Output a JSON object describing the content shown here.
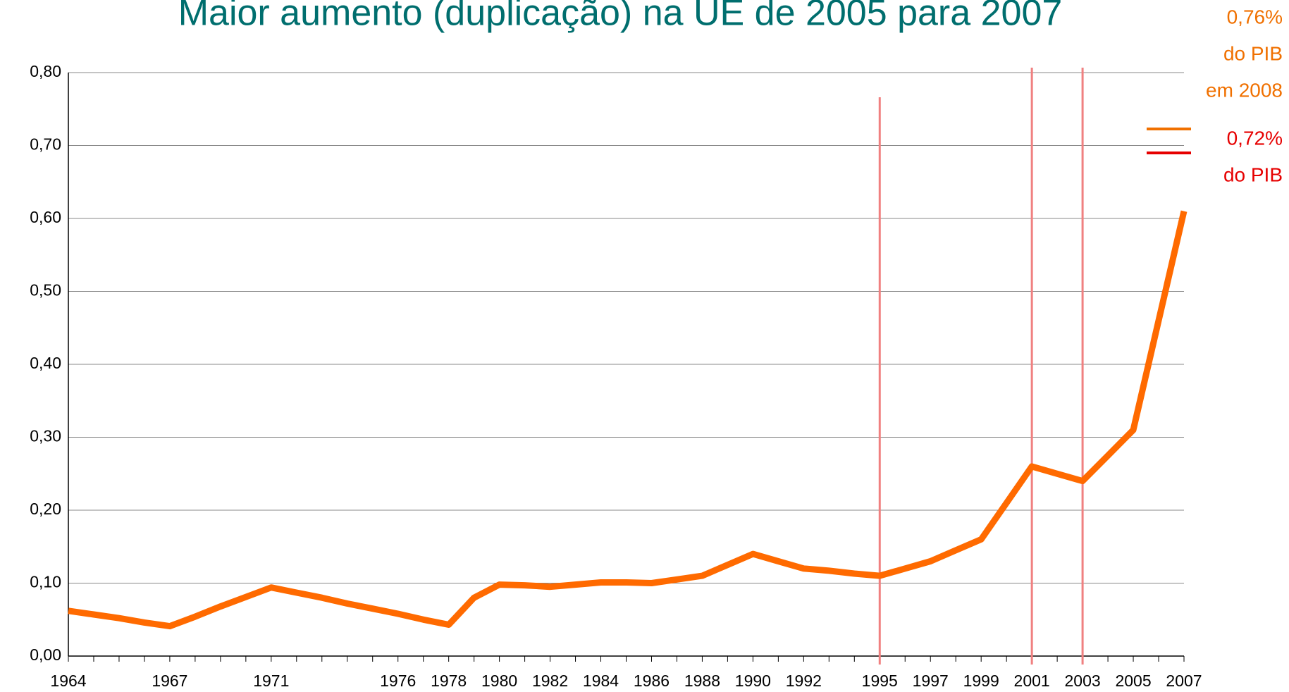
{
  "chart_data": {
    "type": "line",
    "title": "Maior aumento (duplicação) na UE de 2005 para 2007",
    "categories": [
      "1964",
      null,
      null,
      null,
      "1967",
      null,
      null,
      null,
      "1971",
      null,
      null,
      null,
      null,
      "1976",
      null,
      "1978",
      null,
      "1980",
      null,
      "1982",
      null,
      "1984",
      null,
      "1986",
      null,
      "1988",
      null,
      "1990",
      null,
      "1992",
      null,
      null,
      "1995",
      null,
      "1997",
      null,
      "1999",
      null,
      "2001",
      null,
      "2003",
      null,
      "2005",
      null,
      "2007"
    ],
    "series": [
      {
        "name": null,
        "color": "#ff6a00",
        "values": [
          0.062,
          0.057,
          0.052,
          0.046,
          0.041,
          0.054,
          0.068,
          0.081,
          0.094,
          0.087,
          0.08,
          0.072,
          0.065,
          0.058,
          0.05,
          0.043,
          0.08,
          0.098,
          0.097,
          0.095,
          0.098,
          0.101,
          0.101,
          0.1,
          0.105,
          0.11,
          0.125,
          0.14,
          0.13,
          0.12,
          0.117,
          0.113,
          0.11,
          0.12,
          0.13,
          0.145,
          0.16,
          0.21,
          0.26,
          0.25,
          0.24,
          0.275,
          0.31,
          0.46,
          0.61
        ]
      }
    ],
    "ylim": [
      0,
      0.8
    ],
    "yticks": [
      {
        "value": 0,
        "label": "0,00"
      },
      {
        "value": 0.1,
        "label": "0,10"
      },
      {
        "value": 0.2,
        "label": "0,20"
      },
      {
        "value": 0.3,
        "label": "0,30"
      },
      {
        "value": 0.4,
        "label": "0,40"
      },
      {
        "value": 0.5,
        "label": "0,50"
      },
      {
        "value": 0.6,
        "label": "0,60"
      },
      {
        "value": 0.7,
        "label": "0,70"
      },
      {
        "value": 0.8,
        "label": "0,80"
      }
    ],
    "grid": true,
    "highlight_categories": [
      "1995",
      "2001",
      "2003"
    ],
    "highlight_color": "#f08080",
    "annotations": [
      {
        "lines": [
          "0,76%",
          "do PIB",
          "em 2008"
        ],
        "color": "#f07000"
      },
      {
        "lines": [
          "0,72%",
          "do PIB"
        ],
        "color": "#e60000"
      }
    ]
  }
}
